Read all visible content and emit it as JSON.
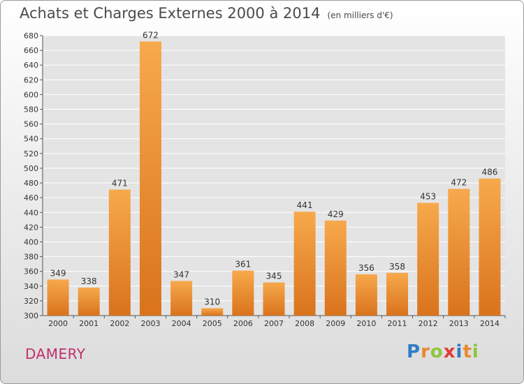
{
  "title": "Achats et Charges Externes 2000 à 2014",
  "subtitle": "(en milliers d'€)",
  "commune": "DAMERY",
  "brand": {
    "text": "Proxiti",
    "letters": [
      {
        "ch": "P",
        "color": "#2e7cc4"
      },
      {
        "ch": "r",
        "color": "#e8892b"
      },
      {
        "ch": "o",
        "color": "#8cc63f"
      },
      {
        "ch": "x",
        "color": "#e23a3a"
      },
      {
        "ch": "i",
        "color": "#2e7cc4"
      },
      {
        "ch": "t",
        "color": "#e8892b"
      },
      {
        "ch": "i",
        "color": "#8cc63f"
      }
    ]
  },
  "colors": {
    "bar_light": "#f7a94c",
    "bar_dark": "#d9731c",
    "grid": "#ffffff",
    "text": "#333333"
  },
  "chart_data": {
    "type": "bar",
    "categories": [
      "2000",
      "2001",
      "2002",
      "2003",
      "2004",
      "2005",
      "2006",
      "2007",
      "2008",
      "2009",
      "2010",
      "2011",
      "2012",
      "2013",
      "2014"
    ],
    "values": [
      349,
      338,
      471,
      672,
      347,
      310,
      361,
      345,
      441,
      429,
      356,
      358,
      453,
      472,
      486
    ],
    "ylim": [
      300,
      680
    ],
    "yticks": [
      300,
      320,
      340,
      360,
      380,
      400,
      420,
      440,
      460,
      480,
      500,
      520,
      540,
      560,
      580,
      600,
      620,
      640,
      660,
      680
    ],
    "grid": true
  }
}
